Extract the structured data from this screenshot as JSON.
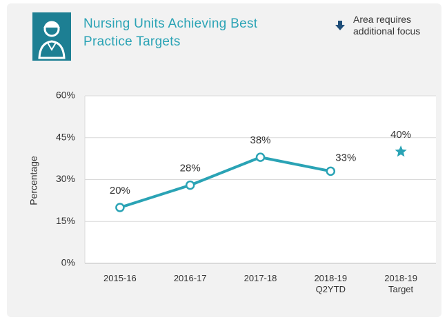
{
  "chart_data": {
    "type": "line",
    "title": "Nursing Units Achieving Best Practice Targets",
    "annotation": "Area requires additional focus",
    "y_label": "Percentage",
    "categories": [
      "2015-16",
      "2016-17",
      "2017-18",
      "2018-19 Q2YTD",
      "2018-19 Target"
    ],
    "series": [
      {
        "color": "#2aa3b5",
        "marker": "circle",
        "values": [
          20,
          28,
          38,
          33,
          null
        ],
        "value_labels": [
          "20%",
          "28%",
          "38%",
          "33%",
          null
        ]
      },
      {
        "color": "#2aa3b5",
        "marker": "star",
        "values": [
          null,
          null,
          null,
          null,
          40
        ],
        "value_labels": [
          null,
          null,
          null,
          null,
          "40%"
        ]
      }
    ],
    "ylim": [
      0,
      60
    ],
    "yticks": [
      {
        "value": 0,
        "label": "0%"
      },
      {
        "value": 15,
        "label": "15%"
      },
      {
        "value": 30,
        "label": "30%"
      },
      {
        "value": 45,
        "label": "45%"
      },
      {
        "value": 60,
        "label": "60%"
      }
    ],
    "grid": true
  }
}
